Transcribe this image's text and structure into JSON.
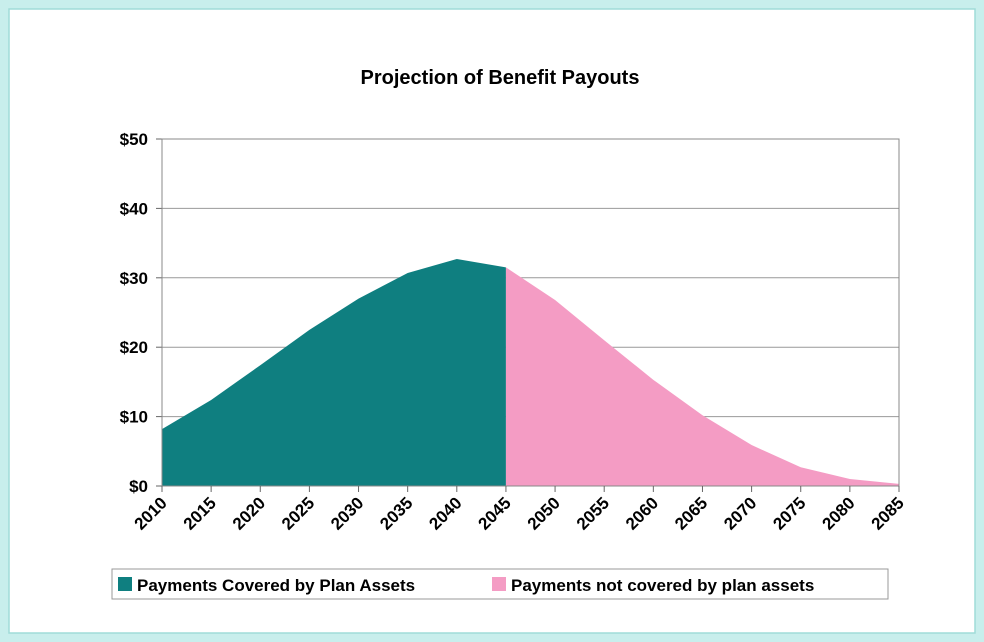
{
  "chart_data": {
    "type": "area",
    "title": "Projection of Benefit Payouts",
    "x": [
      2010,
      2015,
      2020,
      2025,
      2030,
      2035,
      2040,
      2045,
      2050,
      2055,
      2060,
      2065,
      2070,
      2075,
      2080,
      2085
    ],
    "series": [
      {
        "name": "Payments Covered by Plan Assets",
        "color": "#0f7f80",
        "values": [
          8.2,
          12.4,
          17.4,
          22.5,
          27,
          30.7,
          32.7,
          31.5,
          null,
          null,
          null,
          null,
          null,
          null,
          null,
          null
        ]
      },
      {
        "name": "Payments not covered by plan assets",
        "color": "#f49cc4",
        "values": [
          null,
          null,
          null,
          null,
          null,
          null,
          null,
          31.5,
          26.8,
          21,
          15.3,
          10.2,
          5.9,
          2.7,
          1.0,
          0.3
        ]
      }
    ],
    "xlim": [
      2010,
      2085
    ],
    "xticks": [
      2010,
      2015,
      2020,
      2025,
      2030,
      2035,
      2040,
      2045,
      2050,
      2055,
      2060,
      2065,
      2070,
      2075,
      2080,
      2085
    ],
    "ylim": [
      0,
      50
    ],
    "yticks": [
      {
        "value": 0,
        "label": "$0"
      },
      {
        "value": 10,
        "label": "$10"
      },
      {
        "value": 20,
        "label": "$20"
      },
      {
        "value": 30,
        "label": "$30"
      },
      {
        "value": 40,
        "label": "$40"
      },
      {
        "value": 50,
        "label": "$50"
      }
    ],
    "grid": true,
    "legend": "bottom"
  }
}
